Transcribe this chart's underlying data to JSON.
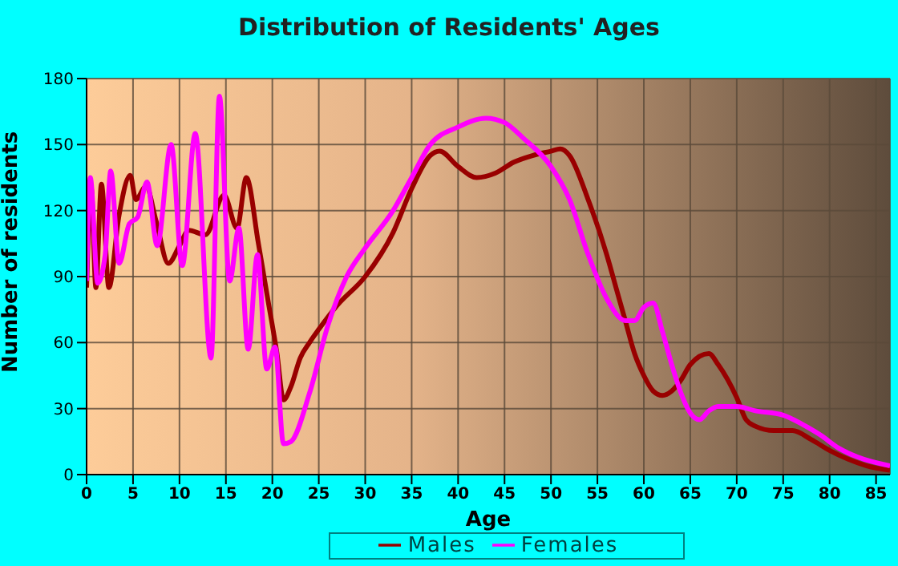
{
  "chart_data": {
    "type": "line",
    "title": "Distribution of Residents' Ages",
    "xlabel": "Age",
    "ylabel": "Number of residents",
    "xlim": [
      0,
      86.5
    ],
    "xticks": [
      0,
      5,
      10,
      15,
      20,
      25,
      30,
      35,
      40,
      45,
      50,
      55,
      60,
      65,
      70,
      75,
      80,
      85
    ],
    "ylim": [
      0,
      180
    ],
    "yticks": [
      0,
      30,
      60,
      90,
      120,
      150,
      180
    ],
    "grid": true,
    "legend": "bottom",
    "marker": "none",
    "line_style": "solid",
    "series": [
      {
        "name": "Males",
        "color": "#990000",
        "x": [
          0,
          0.5,
          1,
          1.6,
          2.4,
          3.5,
          4.7,
          5.3,
          6.4,
          7.5,
          8.8,
          10,
          11,
          12.8,
          14.8,
          16.2,
          17.2,
          18.5,
          19.5,
          20.5,
          21.2,
          22,
          23,
          24,
          25,
          27,
          30,
          33,
          35,
          37,
          38,
          40,
          42,
          44,
          46,
          48,
          50,
          51,
          52,
          54,
          56,
          57,
          58,
          59,
          60,
          61,
          62,
          63,
          64,
          65,
          67,
          68,
          70,
          71,
          72,
          74,
          76,
          78,
          80,
          82,
          84,
          86.5
        ],
        "values": [
          85,
          130,
          85,
          132,
          85,
          118,
          136,
          125,
          131,
          115,
          96,
          104,
          111,
          109,
          127,
          112,
          135,
          105,
          80,
          55,
          34,
          40,
          53,
          60,
          66,
          77,
          90,
          110,
          130,
          145,
          147,
          140,
          135,
          137,
          142,
          145,
          147,
          148,
          145,
          125,
          100,
          85,
          70,
          55,
          45,
          38,
          36,
          38,
          43,
          50,
          55,
          50,
          35,
          25,
          22,
          20,
          20,
          16,
          11,
          7,
          4,
          2
        ]
      },
      {
        "name": "Females",
        "color": "#ff00ff",
        "x": [
          0,
          0.4,
          1.2,
          2,
          2.6,
          3.5,
          4.6,
          5.5,
          6.5,
          7.6,
          9.1,
          10.3,
          11.7,
          13.4,
          14.3,
          15.4,
          16.4,
          17.4,
          18.4,
          19.4,
          20.3,
          21.2,
          22,
          24,
          26,
          28,
          30,
          33,
          35,
          37,
          40,
          43,
          45,
          47,
          50,
          52,
          54,
          56,
          58,
          59,
          60,
          61,
          62,
          63,
          64,
          65,
          66,
          67,
          68,
          70,
          72,
          75,
          77,
          79,
          81,
          83,
          86.5
        ],
        "values": [
          88,
          135,
          87,
          100,
          138,
          96,
          114,
          117,
          133,
          104,
          150,
          95,
          155,
          53,
          172,
          88,
          112,
          57,
          100,
          48,
          58,
          14,
          15,
          37,
          68,
          90,
          103,
          120,
          135,
          150,
          158,
          162,
          160,
          153,
          140,
          125,
          100,
          80,
          70,
          70,
          76,
          78,
          65,
          50,
          37,
          28,
          25,
          29,
          31,
          31,
          29,
          27,
          23,
          18,
          12,
          8,
          4
        ]
      }
    ]
  }
}
